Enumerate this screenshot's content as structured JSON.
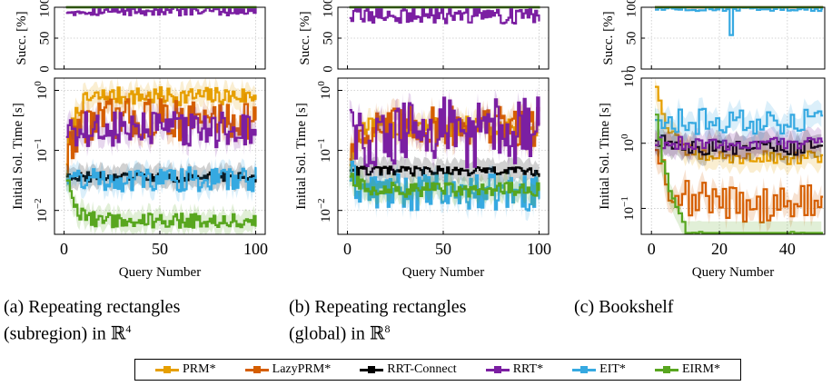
{
  "chart_data": [
    {
      "type": "line",
      "caption": "(a) Repeating rectangles (subregion) in ℝ⁴",
      "caption_lines": [
        "(a) Repeating rectangles",
        "(subregion) in ℝ",
        "4"
      ],
      "xlabel": "Query Number",
      "xlim": [
        -5,
        105
      ],
      "xticks": [
        "0",
        "50",
        "100"
      ],
      "top_panel": {
        "ylabel": "Succ. [%]",
        "ylim": [
          0,
          100
        ],
        "yticks": [
          "0",
          "50",
          "100"
        ]
      },
      "bottom_panel": {
        "ylabel": "Initial Sol. Time [s]",
        "scale": "log",
        "ylim": [
          0.004,
          1.6
        ],
        "yticks": [
          {
            "base": "10",
            "exp": "0"
          },
          {
            "base": "10",
            "exp": "−1"
          },
          {
            "base": "10",
            "exp": "−2"
          }
        ]
      },
      "series": [
        {
          "name": "PRM*",
          "success": 100,
          "time_start": 0.07,
          "time_level": 0.8,
          "noise": 0.15
        },
        {
          "name": "LazyPRM*",
          "success": 100,
          "time_start": 0.06,
          "time_level": 0.33,
          "noise": 0.35
        },
        {
          "name": "RRT-Connect",
          "success": 100,
          "time_start": 0.04,
          "time_level": 0.036,
          "noise": 0.08
        },
        {
          "name": "RRT*",
          "success": 94,
          "time_start": 0.28,
          "time_level": 0.22,
          "noise": 0.3
        },
        {
          "name": "EIT*",
          "success": 100,
          "time_start": 0.04,
          "time_level": 0.033,
          "noise": 0.2
        },
        {
          "name": "EIRM*",
          "success": 100,
          "time_start": 0.035,
          "time_level": 0.0068,
          "noise": 0.12
        }
      ]
    },
    {
      "type": "line",
      "caption": "(b) Repeating rectangles (global) in ℝ⁸",
      "caption_lines": [
        "(b) Repeating rectangles",
        "(global) in ℝ",
        "8"
      ],
      "xlabel": "Query Number",
      "xlim": [
        -5,
        105
      ],
      "xticks": [
        "0",
        "50",
        "100"
      ],
      "top_panel": {
        "ylabel": "Succ. [%]",
        "ylim": [
          0,
          100
        ],
        "yticks": [
          "0",
          "50",
          "100"
        ]
      },
      "bottom_panel": {
        "ylabel": "Initial Sol. Time [s]",
        "scale": "log",
        "ylim": [
          0.004,
          1.6
        ],
        "yticks": [
          {
            "base": "10",
            "exp": "0"
          },
          {
            "base": "10",
            "exp": "−1"
          },
          {
            "base": "10",
            "exp": "−2"
          }
        ]
      },
      "series": [
        {
          "name": "PRM*",
          "success": 100,
          "time_start": 0.07,
          "time_level": 0.24,
          "noise": 0.2
        },
        {
          "name": "LazyPRM*",
          "success": 100,
          "time_start": 0.1,
          "time_level": 0.25,
          "noise": 0.35
        },
        {
          "name": "RRT-Connect",
          "success": 100,
          "time_start": 0.05,
          "time_level": 0.045,
          "noise": 0.08
        },
        {
          "name": "RRT*",
          "success": 88,
          "time_start": 0.3,
          "time_level": 0.2,
          "noise": 0.6
        },
        {
          "name": "EIT*",
          "success": 100,
          "time_start": 0.04,
          "time_level": 0.02,
          "noise": 0.3
        },
        {
          "name": "EIRM*",
          "success": 100,
          "time_start": 0.04,
          "time_level": 0.022,
          "noise": 0.12
        }
      ]
    },
    {
      "type": "line",
      "caption": "(c) Bookshelf",
      "caption_lines": [
        "(c) Bookshelf",
        "",
        ""
      ],
      "xlabel": "Query Number",
      "xlim": [
        -3,
        51
      ],
      "xticks": [
        "0",
        "20",
        "40"
      ],
      "top_panel": {
        "ylabel": "Succ. [%]",
        "ylim": [
          0,
          100
        ],
        "yticks": [
          "0",
          "50",
          "100"
        ]
      },
      "bottom_panel": {
        "ylabel": "Initial Sol. Time [s]",
        "scale": "log",
        "ylim": [
          0.04,
          10
        ],
        "yticks": [
          {
            "base": "10",
            "exp": "1"
          },
          {
            "base": "10",
            "exp": "0"
          },
          {
            "base": "10",
            "exp": "−1"
          }
        ]
      },
      "series": [
        {
          "name": "PRM*",
          "success": 100,
          "time_start": 8,
          "time_level": 0.6,
          "noise": 0.1
        },
        {
          "name": "LazyPRM*",
          "success": 100,
          "time_start": 1.0,
          "time_level": 0.12,
          "noise": 0.3
        },
        {
          "name": "RRT-Connect",
          "success": 100,
          "time_start": 1.2,
          "time_level": 0.85,
          "noise": 0.12
        },
        {
          "name": "RRT*",
          "success": 100,
          "time_start": 1.0,
          "time_level": 1.0,
          "noise": 0.1
        },
        {
          "name": "EIT*",
          "success": 97,
          "time_start": 2.0,
          "time_level": 2.2,
          "noise": 0.2
        },
        {
          "name": "EIRM*",
          "success": 100,
          "time_start": 3.0,
          "time_level": 0.031,
          "noise": 0.15
        }
      ]
    }
  ],
  "legend": {
    "placement": "bottom-center",
    "items": [
      {
        "label": "PRM*",
        "color": "#E69F00"
      },
      {
        "label": "LazyPRM*",
        "color": "#D55E00"
      },
      {
        "label": "RRT-Connect",
        "color": "#000000"
      },
      {
        "label": "RRT*",
        "color": "#7B1FA2"
      },
      {
        "label": "EIT*",
        "color": "#36A9E1"
      },
      {
        "label": "EIRM*",
        "color": "#58A61F"
      }
    ]
  },
  "style": {
    "grid": true,
    "grid_style": "dotted"
  }
}
